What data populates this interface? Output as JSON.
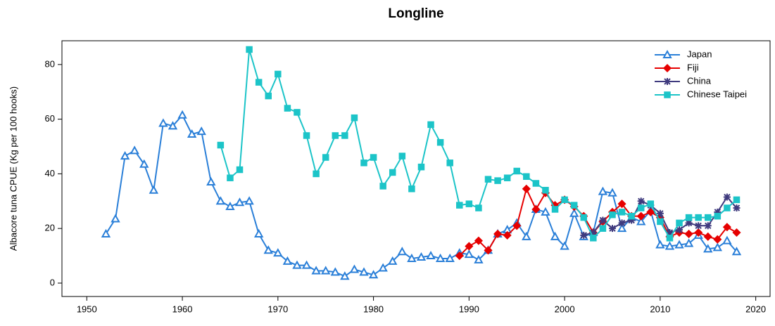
{
  "chart_data": {
    "type": "line",
    "title": "Longline",
    "y_label": "Albacore tuna CPUE (Kg per 100 hooks)",
    "xlim": [
      1947.4,
      2021.5
    ],
    "xticks": [
      1950,
      1960,
      1970,
      1980,
      1990,
      2000,
      2010,
      2020
    ],
    "ylim": [
      -4.9,
      88.7
    ],
    "yticks": [
      0,
      20,
      40,
      60,
      80
    ],
    "legend": "top-right",
    "series": [
      {
        "name": "Japan",
        "color": "#2a7fd8",
        "marker": "triangle",
        "x": [
          1952,
          1953,
          1954,
          1955,
          1956,
          1957,
          1958,
          1959,
          1960,
          1961,
          1962,
          1963,
          1964,
          1965,
          1966,
          1967,
          1968,
          1969,
          1970,
          1971,
          1972,
          1973,
          1974,
          1975,
          1976,
          1977,
          1978,
          1979,
          1980,
          1981,
          1982,
          1983,
          1984,
          1985,
          1986,
          1987,
          1988,
          1989,
          1990,
          1991,
          1992,
          1993,
          1994,
          1995,
          1996,
          1997,
          1998,
          1999,
          2000,
          2001,
          2002,
          2003,
          2004,
          2005,
          2006,
          2007,
          2008,
          2009,
          2010,
          2011,
          2012,
          2013,
          2014,
          2015,
          2016,
          2017,
          2018
        ],
        "values": [
          18,
          23.5,
          46.5,
          48.5,
          43.5,
          34,
          58.5,
          57.5,
          61.5,
          54.5,
          55.5,
          37,
          30,
          28,
          29.5,
          30,
          18,
          12,
          11,
          8,
          6.5,
          6.5,
          4.5,
          4.5,
          4,
          2.5,
          5,
          4,
          3,
          5.5,
          8,
          11.5,
          9,
          9.5,
          10,
          9,
          9,
          11,
          10.5,
          8.5,
          12,
          18,
          19.5,
          22,
          17,
          27,
          26,
          17,
          13.5,
          25.5,
          17,
          18.5,
          33.5,
          33,
          20,
          24,
          22.5,
          26.5,
          14,
          13.5,
          14,
          14.5,
          17.5,
          12.5,
          13,
          15.5,
          11.5
        ]
      },
      {
        "name": "Fiji",
        "color": "#e60000",
        "marker": "diamond",
        "x": [
          1989,
          1990,
          1991,
          1992,
          1993,
          1994,
          1995,
          1996,
          1997,
          1998,
          1999,
          2000,
          2001,
          2002,
          2003,
          2004,
          2005,
          2006,
          2007,
          2008,
          2009,
          2010,
          2011,
          2012,
          2013,
          2014,
          2015,
          2016,
          2017,
          2018
        ],
        "values": [
          10,
          13.5,
          15.5,
          12,
          18,
          17.5,
          21,
          34.5,
          27,
          33,
          28.5,
          30.5,
          28,
          24.5,
          18.5,
          22.5,
          26,
          29,
          24.5,
          24.5,
          26,
          24,
          17,
          18.5,
          18,
          18.5,
          17,
          16,
          20.5,
          18.5
        ]
      },
      {
        "name": "China",
        "color": "#3f3a7e",
        "marker": "asterisk",
        "x": [
          2002,
          2003,
          2004,
          2005,
          2006,
          2007,
          2008,
          2009,
          2010,
          2011,
          2012,
          2013,
          2014,
          2015,
          2016,
          2017,
          2018
        ],
        "values": [
          17.5,
          18.5,
          23,
          20,
          22,
          23,
          30,
          28.5,
          25.5,
          18.5,
          19.5,
          22,
          21,
          21,
          26,
          31.5,
          27.5
        ]
      },
      {
        "name": "Chinese Taipei",
        "color": "#1cc4c8",
        "marker": "square",
        "x": [
          1964,
          1965,
          1966,
          1967,
          1968,
          1969,
          1970,
          1971,
          1972,
          1973,
          1974,
          1975,
          1976,
          1977,
          1978,
          1979,
          1980,
          1981,
          1982,
          1983,
          1984,
          1985,
          1986,
          1987,
          1988,
          1989,
          1990,
          1991,
          1992,
          1993,
          1994,
          1995,
          1996,
          1997,
          1998,
          1999,
          2000,
          2001,
          2002,
          2003,
          2004,
          2005,
          2006,
          2007,
          2008,
          2009,
          2010,
          2011,
          2012,
          2013,
          2014,
          2015,
          2016,
          2017,
          2018
        ],
        "values": [
          50.5,
          38.5,
          41.5,
          85.5,
          73.5,
          68.5,
          76.5,
          64,
          62.5,
          54,
          40,
          46,
          54,
          54,
          60.5,
          44,
          46,
          35.5,
          40.5,
          46.5,
          34.5,
          42.5,
          58,
          51.5,
          44,
          28.5,
          29,
          27.5,
          38,
          37.5,
          38.5,
          41,
          39,
          36.5,
          34,
          27,
          30.5,
          28.5,
          24,
          16.5,
          20,
          25,
          26,
          24.5,
          27.5,
          29,
          22.5,
          16.5,
          22,
          24,
          24,
          24,
          24.5,
          27.5,
          30.5
        ]
      }
    ]
  }
}
